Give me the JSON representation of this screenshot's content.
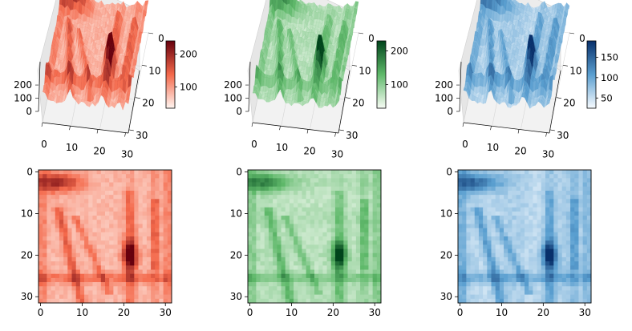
{
  "figure": {
    "background": "#ffffff"
  },
  "chart_data": [
    {
      "type": "surface3d",
      "channel": "red",
      "colormap": "Reds",
      "colors": {
        "low": "#fff5f0",
        "high": "#67000d"
      },
      "xlim": [
        0,
        31
      ],
      "ylim": [
        0,
        31
      ],
      "zlim": [
        0,
        255
      ],
      "xticks": [
        "0",
        "10",
        "20",
        "30"
      ],
      "yticks": [
        "0",
        "10",
        "20",
        "30"
      ],
      "zticks": [
        "0",
        "100",
        "200"
      ],
      "colorbar": {
        "ticks": [
          "100",
          "200"
        ],
        "range": [
          35,
          240
        ],
        "tick_values": [
          100,
          200
        ]
      }
    },
    {
      "type": "surface3d",
      "channel": "green",
      "colormap": "Greens",
      "colors": {
        "low": "#f7fcf5",
        "high": "#00441b"
      },
      "xlim": [
        0,
        31
      ],
      "ylim": [
        0,
        31
      ],
      "zlim": [
        0,
        255
      ],
      "xticks": [
        "0",
        "10",
        "20",
        "30"
      ],
      "yticks": [
        "0",
        "10",
        "20",
        "30"
      ],
      "zticks": [
        "0",
        "100",
        "200"
      ],
      "colorbar": {
        "ticks": [
          "100",
          "200"
        ],
        "range": [
          30,
          230
        ],
        "tick_values": [
          100,
          200
        ]
      }
    },
    {
      "type": "surface3d",
      "channel": "blue",
      "colormap": "Blues",
      "colors": {
        "low": "#f7fbff",
        "high": "#08306b"
      },
      "xlim": [
        0,
        31
      ],
      "ylim": [
        0,
        31
      ],
      "zlim": [
        0,
        255
      ],
      "xticks": [
        "0",
        "10",
        "20",
        "30"
      ],
      "yticks": [
        "0",
        "10",
        "20",
        "30"
      ],
      "zticks": [
        "0",
        "100",
        "200"
      ],
      "colorbar": {
        "ticks": [
          "50",
          "100",
          "150"
        ],
        "range": [
          25,
          190
        ],
        "tick_values": [
          50,
          100,
          150
        ]
      }
    },
    {
      "type": "heatmap",
      "channel": "red",
      "colormap": "Reds",
      "grid_size": [
        32,
        32
      ],
      "xticks": [
        "0",
        "10",
        "20",
        "30"
      ],
      "yticks": [
        "0",
        "10",
        "20",
        "30"
      ],
      "xtick_values": [
        0,
        10,
        20,
        30
      ],
      "ytick_values": [
        0,
        10,
        20,
        30
      ]
    },
    {
      "type": "heatmap",
      "channel": "green",
      "colormap": "Greens",
      "grid_size": [
        32,
        32
      ],
      "xticks": [
        "0",
        "10",
        "20",
        "30"
      ],
      "yticks": [
        "0",
        "10",
        "20",
        "30"
      ],
      "xtick_values": [
        0,
        10,
        20,
        30
      ],
      "ytick_values": [
        0,
        10,
        20,
        30
      ]
    },
    {
      "type": "heatmap",
      "channel": "blue",
      "colormap": "Blues",
      "grid_size": [
        32,
        32
      ],
      "xticks": [
        "0",
        "10",
        "20",
        "30"
      ],
      "yticks": [
        "0",
        "10",
        "20",
        "30"
      ],
      "xtick_values": [
        0,
        10,
        20,
        30
      ],
      "ytick_values": [
        0,
        10,
        20,
        30
      ]
    }
  ]
}
